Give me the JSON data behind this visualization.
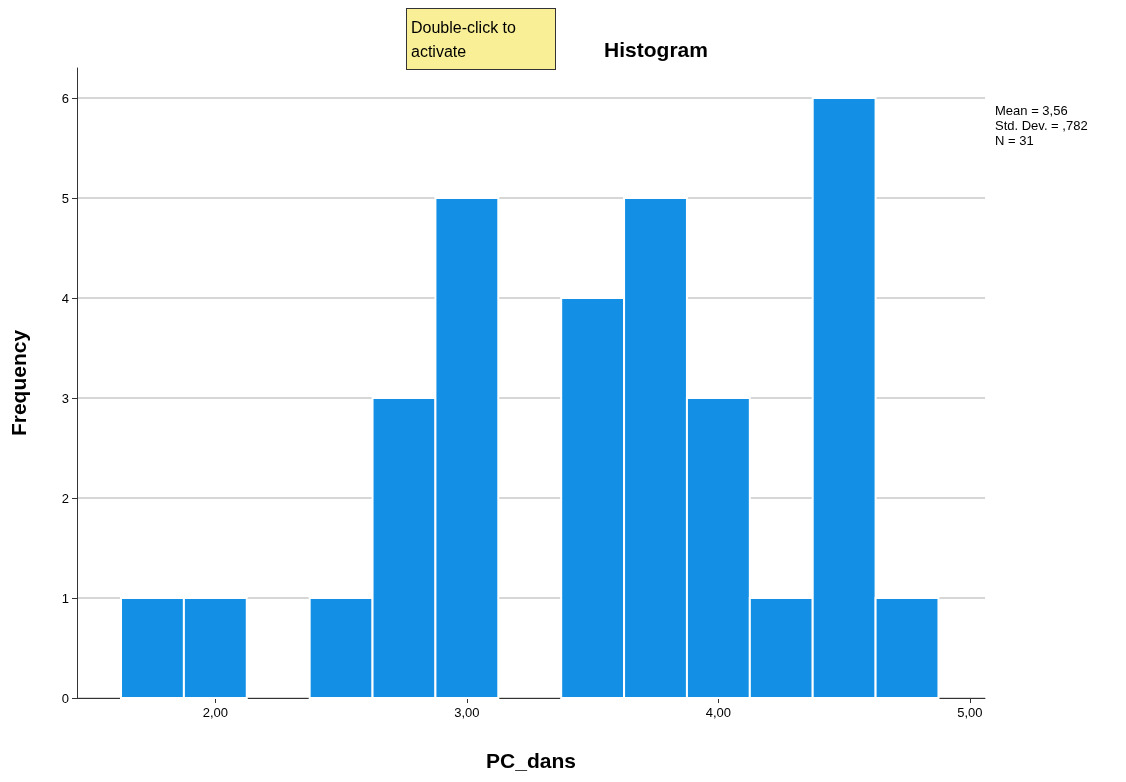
{
  "chart_data": {
    "type": "histogram",
    "title": "Histogram",
    "xlabel": "PC_dans",
    "ylabel": "Frequency",
    "bins": [
      1.625,
      1.875,
      2.125,
      2.375,
      2.625,
      2.875,
      3.125,
      3.375,
      3.625,
      3.875,
      4.125,
      4.375,
      4.625,
      4.875
    ],
    "values": [
      1,
      1,
      0,
      1,
      3,
      5,
      0,
      4,
      5,
      3,
      1,
      6,
      1
    ],
    "color": "#1390e6",
    "xlim": [
      1.45,
      5.06
    ],
    "xticks": [
      {
        "value": 2,
        "label": "2,00"
      },
      {
        "value": 3,
        "label": "3,00"
      },
      {
        "value": 4,
        "label": "4,00"
      },
      {
        "value": 5,
        "label": "5,00"
      }
    ],
    "ylim": [
      0,
      6.3
    ],
    "yticks": [
      0,
      1,
      2,
      3,
      4,
      5,
      6
    ],
    "grid": "y",
    "annotations": [
      "Double-click to activate",
      "Mean = 3,56",
      "Std. Dev. = ,782",
      "N = 31"
    ]
  }
}
